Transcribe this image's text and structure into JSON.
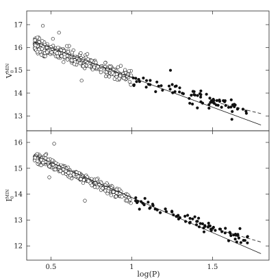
{
  "chart_data": [
    {
      "type": "scatter",
      "ylabel_main": "V",
      "ylabel_sub": "0",
      "ylabel_sup": "MIN",
      "xlim": [
        0.35,
        1.85
      ],
      "ylim": [
        17.6,
        12.35
      ],
      "y_inverted": true,
      "x_ticks": [
        0.5,
        1,
        1.5
      ],
      "x_tick_labels": [],
      "y_ticks": [
        13,
        14,
        15,
        16,
        17
      ],
      "y_tick_labels": [
        "13",
        "14",
        "15",
        "16",
        "17"
      ],
      "fit_solid": {
        "x": [
          0.4,
          1.8
        ],
        "y": [
          16.25,
          12.6
        ]
      },
      "fit_dashed": {
        "x": [
          1.55,
          1.8
        ],
        "y": [
          13.55,
          13.1
        ]
      },
      "series": [
        {
          "marker": "open-circle",
          "cluster": "short-period",
          "x_range": [
            0.4,
            1.0
          ],
          "trend": {
            "x": [
              0.4,
              1.0
            ],
            "y": [
              16.15,
              14.65
            ]
          },
          "scatter": 0.28,
          "count": 330,
          "outliers": [
            {
              "x": 0.69,
              "y": 14.55
            },
            {
              "x": 0.45,
              "y": 16.95
            },
            {
              "x": 0.55,
              "y": 16.65
            }
          ]
        },
        {
          "marker": "filled-circle",
          "cluster": "long-period",
          "x_range": [
            1.0,
            1.72
          ],
          "trend": {
            "x": [
              1.0,
              1.72
            ],
            "y": [
              14.65,
              13.2
            ]
          },
          "scatter": 0.28,
          "count": 80,
          "outliers": [
            {
              "x": 1.62,
              "y": 12.85
            },
            {
              "x": 1.24,
              "y": 15.0
            }
          ]
        }
      ]
    },
    {
      "type": "scatter",
      "xlabel": "log(P)",
      "ylabel_main": "I",
      "ylabel_sub": "0",
      "ylabel_sup": "MIN",
      "xlim": [
        0.35,
        1.85
      ],
      "ylim": [
        16.45,
        11.45
      ],
      "y_inverted": true,
      "x_ticks": [
        0.5,
        1,
        1.5
      ],
      "x_tick_labels": [
        "0.5",
        "1",
        "1.5"
      ],
      "y_ticks": [
        12,
        13,
        14,
        15,
        16
      ],
      "y_tick_labels": [
        "12",
        "13",
        "14",
        "15",
        "16"
      ],
      "fit_solid": {
        "x": [
          0.4,
          1.8
        ],
        "y": [
          15.5,
          11.7
        ]
      },
      "fit_dashed": {
        "x": [
          1.55,
          1.8
        ],
        "y": [
          12.6,
          12.15
        ]
      },
      "series": [
        {
          "marker": "open-circle",
          "cluster": "short-period",
          "x_range": [
            0.4,
            1.0
          ],
          "trend": {
            "x": [
              0.4,
              1.0
            ],
            "y": [
              15.45,
              13.8
            ]
          },
          "scatter": 0.17,
          "count": 330,
          "outliers": [
            {
              "x": 0.49,
              "y": 14.65
            },
            {
              "x": 0.71,
              "y": 13.75
            },
            {
              "x": 0.52,
              "y": 15.95
            }
          ]
        },
        {
          "marker": "filled-circle",
          "cluster": "long-period",
          "x_range": [
            1.0,
            1.72
          ],
          "trend": {
            "x": [
              1.0,
              1.72
            ],
            "y": [
              13.8,
              12.2
            ]
          },
          "scatter": 0.2,
          "count": 80,
          "outliers": [
            {
              "x": 1.65,
              "y": 12.15
            },
            {
              "x": 1.6,
              "y": 12.2
            }
          ]
        }
      ]
    }
  ]
}
